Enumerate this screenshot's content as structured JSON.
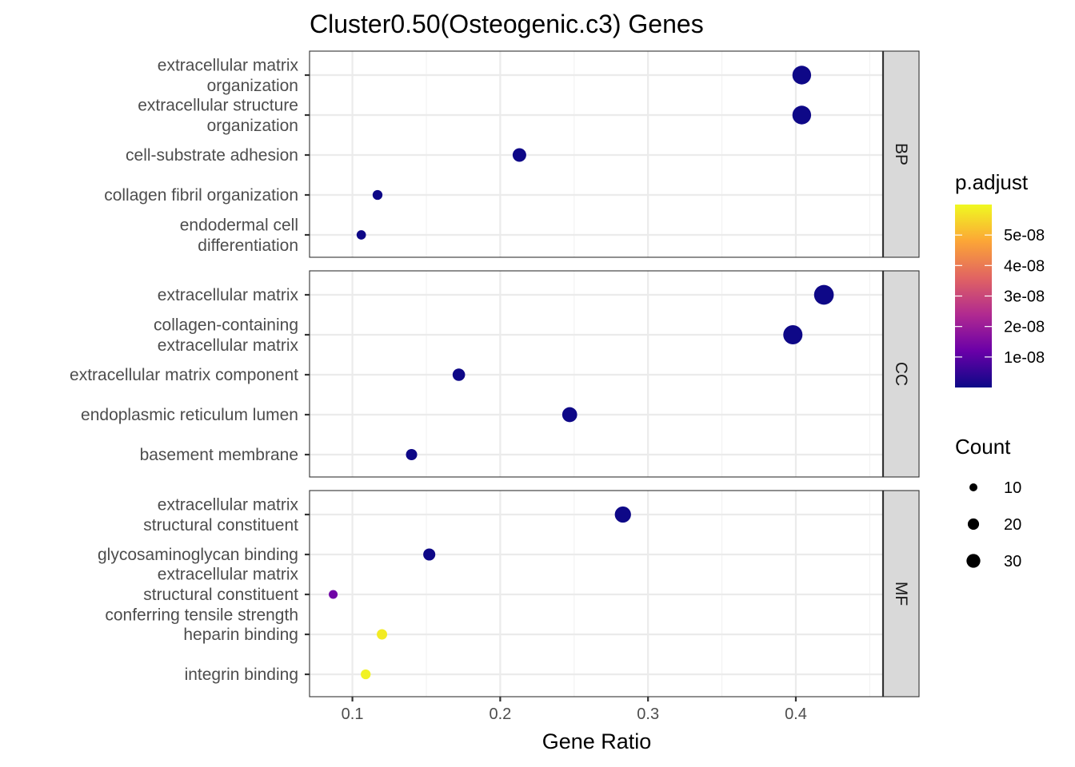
{
  "chart_data": {
    "type": "scatter",
    "title": "Cluster0.50(Osteogenic.c3) Genes",
    "xlabel": "Gene Ratio",
    "xlim": [
      0.071,
      0.459
    ],
    "x_ticks": [
      "0.1",
      "0.2",
      "0.3",
      "0.4"
    ],
    "grid": true,
    "facets": [
      {
        "name": "BP",
        "terms": [
          {
            "label": [
              "extracellular matrix",
              "organization"
            ],
            "gene_ratio": 0.404,
            "count": 36,
            "p_adjust": 1e-10
          },
          {
            "label": [
              "extracellular structure",
              "organization"
            ],
            "gene_ratio": 0.404,
            "count": 36,
            "p_adjust": 1e-10
          },
          {
            "label": [
              "cell-substrate adhesion"
            ],
            "gene_ratio": 0.213,
            "count": 19,
            "p_adjust": 1e-10
          },
          {
            "label": [
              "collagen fibril organization"
            ],
            "gene_ratio": 0.117,
            "count": 10,
            "p_adjust": 1e-10
          },
          {
            "label": [
              "endodermal cell",
              "differentiation"
            ],
            "gene_ratio": 0.106,
            "count": 9,
            "p_adjust": 1e-10
          }
        ]
      },
      {
        "name": "CC",
        "terms": [
          {
            "label": [
              "extracellular matrix"
            ],
            "gene_ratio": 0.419,
            "count": 40,
            "p_adjust": 1e-10
          },
          {
            "label": [
              "collagen-containing",
              "extracellular matrix"
            ],
            "gene_ratio": 0.398,
            "count": 38,
            "p_adjust": 1e-10
          },
          {
            "label": [
              "extracellular matrix component"
            ],
            "gene_ratio": 0.172,
            "count": 16,
            "p_adjust": 1e-10
          },
          {
            "label": [
              "endoplasmic reticulum lumen"
            ],
            "gene_ratio": 0.247,
            "count": 23,
            "p_adjust": 1e-10
          },
          {
            "label": [
              "basement membrane"
            ],
            "gene_ratio": 0.14,
            "count": 13,
            "p_adjust": 1e-10
          }
        ]
      },
      {
        "name": "MF",
        "terms": [
          {
            "label": [
              "extracellular matrix",
              "structural constituent"
            ],
            "gene_ratio": 0.283,
            "count": 27,
            "p_adjust": 1e-10
          },
          {
            "label": [
              "glycosaminoglycan binding"
            ],
            "gene_ratio": 0.152,
            "count": 15,
            "p_adjust": 1e-10
          },
          {
            "label": [
              "extracellular matrix",
              "structural constituent",
              "conferring tensile strength"
            ],
            "gene_ratio": 0.087,
            "count": 8,
            "p_adjust": 1.3e-08
          },
          {
            "label": [
              "heparin binding"
            ],
            "gene_ratio": 0.12,
            "count": 11,
            "p_adjust": 5.8e-08
          },
          {
            "label": [
              "integrin binding"
            ],
            "gene_ratio": 0.109,
            "count": 10,
            "p_adjust": 5.9e-08
          }
        ]
      }
    ],
    "color_legend": {
      "title": "p.adjust",
      "ticks": [
        {
          "label": "5e-08",
          "value": 5e-08
        },
        {
          "label": "4e-08",
          "value": 4e-08
        },
        {
          "label": "3e-08",
          "value": 3e-08
        },
        {
          "label": "2e-08",
          "value": 2e-08
        },
        {
          "label": "1e-08",
          "value": 1e-08
        }
      ],
      "range": [
        0,
        6e-08
      ],
      "colors": [
        "#0d0887",
        "#6a00a8",
        "#b12a90",
        "#e16462",
        "#fca636",
        "#f0f921"
      ]
    },
    "size_legend": {
      "title": "Count",
      "entries": [
        {
          "label": "10",
          "value": 10
        },
        {
          "label": "20",
          "value": 20
        },
        {
          "label": "30",
          "value": 30
        }
      ]
    }
  }
}
